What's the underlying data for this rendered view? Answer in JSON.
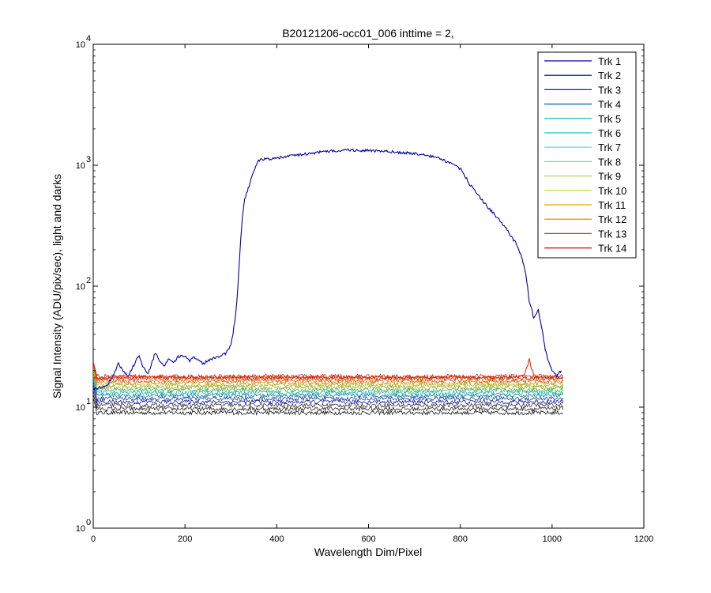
{
  "chart_data": {
    "type": "line",
    "title": "B20121206-occ01_006 inttime = 2,",
    "xlabel": "Wavelength Dim/Pixel",
    "ylabel": "Signal Intensity (ADU/pix/sec), light and darks",
    "xlim": [
      0,
      1200
    ],
    "ylim": [
      1,
      10000
    ],
    "yscale": "log",
    "xticks": [
      "0",
      "200",
      "400",
      "600",
      "800",
      "1000",
      "1200"
    ],
    "yticks": [
      {
        "base": "10",
        "exp": "0",
        "value": 1
      },
      {
        "base": "10",
        "exp": "1",
        "value": 10
      },
      {
        "base": "10",
        "exp": "2",
        "value": 100
      },
      {
        "base": "10",
        "exp": "3",
        "value": 1000
      },
      {
        "base": "10",
        "exp": "4",
        "value": 10000
      }
    ],
    "grid": false,
    "legend": {
      "position": "top-right",
      "entries": [
        {
          "name": "Trk 1",
          "color": "#0000aa"
        },
        {
          "name": "Trk 2",
          "color": "#000088"
        },
        {
          "name": "Trk 3",
          "color": "#0033aa"
        },
        {
          "name": "Trk 4",
          "color": "#006699"
        },
        {
          "name": "Trk 5",
          "color": "#00aacc"
        },
        {
          "name": "Trk 6",
          "color": "#00cccc"
        },
        {
          "name": "Trk 7",
          "color": "#33dddd"
        },
        {
          "name": "Trk 8",
          "color": "#77dd88"
        },
        {
          "name": "Trk 9",
          "color": "#aadd66"
        },
        {
          "name": "Trk 10",
          "color": "#cccc33"
        },
        {
          "name": "Trk 11",
          "color": "#ddaa00"
        },
        {
          "name": "Trk 12",
          "color": "#ee7700"
        },
        {
          "name": "Trk 13",
          "color": "#dd3300"
        },
        {
          "name": "Trk 14",
          "color": "#cc0000"
        }
      ]
    },
    "series": [
      {
        "name": "Trk 1",
        "color": "#0000aa",
        "x": [
          0,
          10,
          30,
          45,
          55,
          65,
          75,
          85,
          100,
          110,
          120,
          135,
          145,
          155,
          165,
          175,
          185,
          200,
          210,
          220,
          240,
          255,
          270,
          290,
          300,
          305,
          310,
          315,
          320,
          325,
          330,
          340,
          350,
          360,
          380,
          400,
          420,
          450,
          500,
          550,
          570,
          600,
          650,
          700,
          750,
          780,
          800,
          810,
          820,
          840,
          860,
          880,
          900,
          920,
          935,
          940,
          945,
          950,
          955,
          960,
          965,
          970,
          975,
          980,
          985,
          990,
          1000,
          1010,
          1015,
          1020
        ],
        "y": [
          14,
          14.5,
          15,
          19,
          23,
          20,
          18,
          21,
          27,
          21,
          19,
          28,
          24,
          22,
          25,
          23,
          26,
          27,
          24,
          26,
          23,
          25,
          26,
          28,
          33,
          42,
          56,
          95,
          200,
          380,
          520,
          680,
          900,
          1100,
          1130,
          1140,
          1180,
          1220,
          1290,
          1340,
          1330,
          1320,
          1290,
          1250,
          1160,
          1030,
          930,
          820,
          700,
          560,
          450,
          370,
          300,
          230,
          170,
          140,
          110,
          75,
          65,
          55,
          60,
          65,
          50,
          40,
          30,
          25,
          20,
          18,
          19,
          20
        ]
      },
      {
        "name": "Trk 13",
        "color": "#dd3300",
        "x": [
          0,
          100,
          200,
          300,
          400,
          500,
          600,
          700,
          800,
          900,
          930,
          940,
          945,
          950,
          955,
          960,
          970,
          1000,
          1024
        ],
        "y": [
          17.5,
          17.8,
          17.6,
          17.7,
          17.6,
          17.8,
          17.7,
          17.6,
          17.7,
          17.6,
          17.8,
          18.5,
          21,
          25,
          21,
          18.5,
          17.8,
          17.6,
          17.7
        ]
      }
    ],
    "dark_traces": {
      "count": 14,
      "x_range": [
        0,
        1024
      ],
      "y_range": [
        9,
        18
      ]
    }
  }
}
